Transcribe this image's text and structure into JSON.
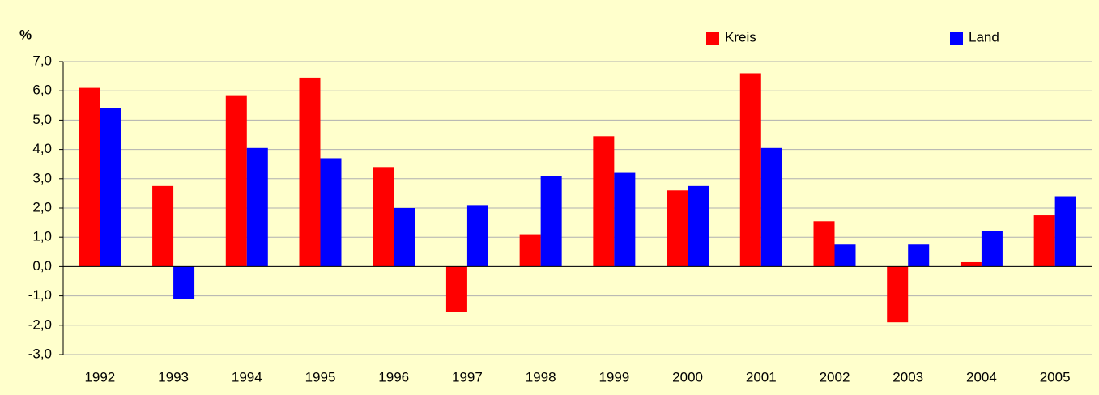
{
  "chart_data": {
    "type": "bar",
    "ylabel": "%",
    "categories": [
      "1992",
      "1993",
      "1994",
      "1995",
      "1996",
      "1997",
      "1998",
      "1999",
      "2000",
      "2001",
      "2002",
      "2003",
      "2004",
      "2005"
    ],
    "series": [
      {
        "name": "Kreis",
        "color": "#ff0000",
        "values": [
          6.1,
          2.75,
          5.85,
          6.45,
          3.4,
          -1.55,
          1.1,
          4.45,
          2.6,
          6.6,
          1.55,
          -1.9,
          0.15,
          1.75
        ]
      },
      {
        "name": "Land",
        "color": "#0000ff",
        "values": [
          5.4,
          -1.1,
          4.05,
          3.7,
          2.0,
          2.1,
          3.1,
          3.2,
          2.75,
          4.05,
          0.75,
          0.75,
          1.2,
          2.4
        ]
      }
    ],
    "ylim": [
      -3,
      7
    ],
    "yticks": [
      {
        "value": -3,
        "label": "-3,0"
      },
      {
        "value": -2,
        "label": "-2,0"
      },
      {
        "value": -1,
        "label": "-1,0"
      },
      {
        "value": 0,
        "label": "0,0"
      },
      {
        "value": 1,
        "label": "1,0"
      },
      {
        "value": 2,
        "label": "2,0"
      },
      {
        "value": 3,
        "label": "3,0"
      },
      {
        "value": 4,
        "label": "4,0"
      },
      {
        "value": 5,
        "label": "5,0"
      },
      {
        "value": 6,
        "label": "6,0"
      },
      {
        "value": 7,
        "label": "7,0"
      }
    ],
    "grid": true,
    "legend": "top"
  }
}
